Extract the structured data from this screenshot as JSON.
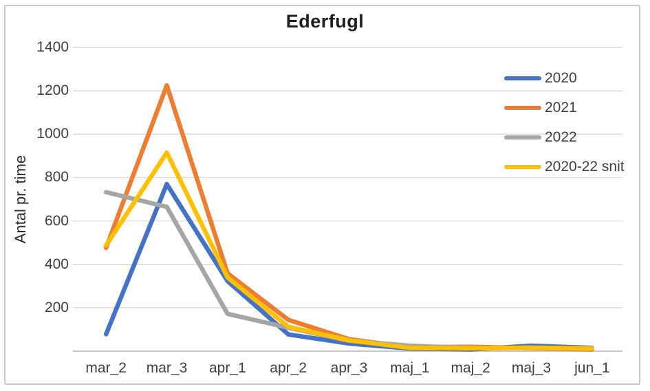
{
  "chart_data": {
    "type": "line",
    "title": "Ederfugl",
    "ylabel": "Antal pr. time",
    "xlabel": "",
    "categories": [
      "mar_2",
      "mar_3",
      "apr_1",
      "apr_2",
      "apr_3",
      "maj_1",
      "maj_2",
      "maj_3",
      "jun_1"
    ],
    "series": [
      {
        "name": "2020",
        "color": "#4472C4",
        "values": [
          78,
          770,
          323,
          77,
          35,
          12,
          8,
          25,
          15
        ]
      },
      {
        "name": "2021",
        "color": "#ED7D31",
        "values": [
          476,
          1225,
          359,
          144,
          55,
          18,
          20,
          14,
          8
        ]
      },
      {
        "name": "2022",
        "color": "#A5A5A5",
        "values": [
          733,
          665,
          172,
          108,
          48,
          25,
          14,
          15,
          13
        ]
      },
      {
        "name": "2020-22 snit",
        "color": "#FFC000",
        "values": [
          487,
          915,
          340,
          112,
          50,
          15,
          13,
          16,
          12
        ]
      }
    ],
    "ylim": [
      0,
      1400
    ],
    "yticks": [
      200,
      400,
      600,
      800,
      1000,
      1200,
      1400
    ],
    "grid": true,
    "legend_position": "right"
  },
  "styles": {
    "grid_color": "#D9D9D9",
    "axis_color": "#BFBFBF",
    "label_color": "#3F3F3F",
    "title_color": "#1F1F1F",
    "frame_border_color": "#C9C7C7",
    "background": "#FFFFFF"
  }
}
